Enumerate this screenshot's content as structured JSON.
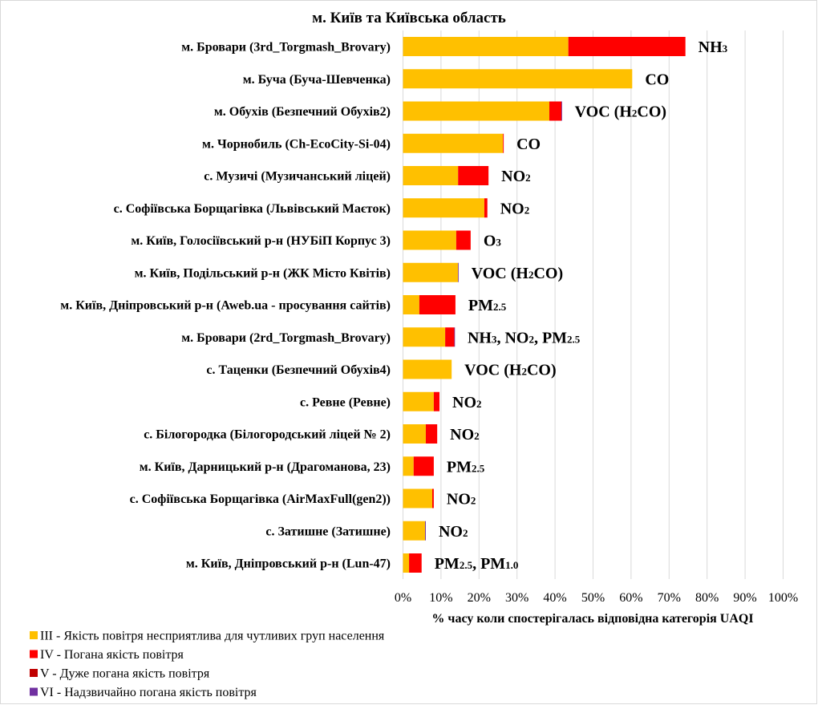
{
  "chart_data": {
    "type": "bar",
    "orientation": "horizontal",
    "stacked": true,
    "title": "м. Київ та Київська область",
    "xlabel": "% часу коли спостерігалась відповідна категорія UAQI",
    "ylabel": "",
    "xlim": [
      0,
      100
    ],
    "grid": true,
    "legend_position": "bottom-left",
    "xticks": [
      "0%",
      "10%",
      "20%",
      "30%",
      "40%",
      "50%",
      "60%",
      "70%",
      "80%",
      "90%",
      "100%"
    ],
    "categories": [
      "м. Бровари (3rd_Torgmash_Brovary)",
      "м. Буча (Буча-Шевченка)",
      "м. Обухів (Безпечний Обухів2)",
      "м. Чорнобиль (Ch-EcoCity-Si-04)",
      "с. Музичі (Музичанський ліцей)",
      "с. Софіївська Борщагівка (Львівський Маєток)",
      "м. Київ, Голосіївський р-н (НУБіП Корпус 3)",
      "м. Київ, Подільський р-н (ЖК Місто Квітів)",
      "м. Київ, Дніпровський р-н (Aweb.ua - просування сайтів)",
      "м. Бровари (2rd_Torgmash_Brovary)",
      "с. Таценки (Безпечний Обухів4)",
      "с. Ревне (Ревне)",
      "с. Білогородка (Білогородський ліцей № 2)",
      "м. Київ, Дарницький р-н (Драгоманова, 23)",
      "с. Софіївська Борщагівка (AirMaxFull(gen2))",
      "с. Затишне (Затишне)",
      "м. Київ, Дніпровський р-н (Lun-47)"
    ],
    "annotations": [
      [
        {
          "t": "NH",
          "s": "3"
        }
      ],
      [
        {
          "t": "CO"
        }
      ],
      [
        {
          "t": "VOC (H"
        },
        {
          "s": "2"
        },
        {
          "t": "CO)"
        }
      ],
      [
        {
          "t": "CO"
        }
      ],
      [
        {
          "t": "NO"
        },
        {
          "s": "2"
        }
      ],
      [
        {
          "t": "NO"
        },
        {
          "s": "2"
        }
      ],
      [
        {
          "t": "O"
        },
        {
          "s": "3"
        }
      ],
      [
        {
          "t": "VOC (H"
        },
        {
          "s": "2"
        },
        {
          "t": "CO)"
        }
      ],
      [
        {
          "t": "PM"
        },
        {
          "s": "2.5"
        }
      ],
      [
        {
          "t": "NH"
        },
        {
          "s": "3"
        },
        {
          "t": ", NO"
        },
        {
          "s": "2"
        },
        {
          "t": ", PM"
        },
        {
          "s": "2.5"
        }
      ],
      [
        {
          "t": "VOC (H"
        },
        {
          "s": "2"
        },
        {
          "t": "CO)"
        }
      ],
      [
        {
          "t": "NO"
        },
        {
          "s": "2"
        }
      ],
      [
        {
          "t": "NO"
        },
        {
          "s": "2"
        }
      ],
      [
        {
          "t": "PM"
        },
        {
          "s": "2.5"
        }
      ],
      [
        {
          "t": "NO"
        },
        {
          "s": "2"
        }
      ],
      [
        {
          "t": "NO"
        },
        {
          "s": "2"
        }
      ],
      [
        {
          "t": "PM"
        },
        {
          "s": "2.5"
        },
        {
          "t": ", PM"
        },
        {
          "s": "1.0"
        }
      ]
    ],
    "series": [
      {
        "name": "III - Якість повітря несприятлива для чутливих груп населення",
        "color": "#FFC000",
        "values": [
          43.5,
          60.3,
          38.5,
          26.3,
          14.5,
          21.4,
          14.0,
          14.5,
          4.3,
          11.1,
          12.8,
          8.1,
          6.0,
          2.8,
          7.7,
          5.8,
          1.6
        ]
      },
      {
        "name": "IV - Погана якість повітря",
        "color": "#FF0000",
        "values": [
          30.8,
          0.0,
          3.2,
          0.2,
          8.0,
          0.8,
          3.8,
          0.0,
          9.5,
          2.4,
          0.0,
          1.5,
          3.0,
          5.3,
          0.4,
          0.0,
          3.3
        ]
      },
      {
        "name": "V - Дуже погана якість повітря",
        "color": "#C00000",
        "values": [
          0,
          0,
          0,
          0,
          0,
          0,
          0,
          0,
          0,
          0,
          0,
          0,
          0,
          0,
          0,
          0,
          0
        ]
      },
      {
        "name": "VI - Надзвичайно погана якість повітря",
        "color": "#7030A0",
        "values": [
          0,
          0,
          0.1,
          0,
          0,
          0,
          0,
          0.1,
          0,
          0.1,
          0,
          0,
          0,
          0,
          0,
          0.2,
          0
        ]
      }
    ]
  }
}
